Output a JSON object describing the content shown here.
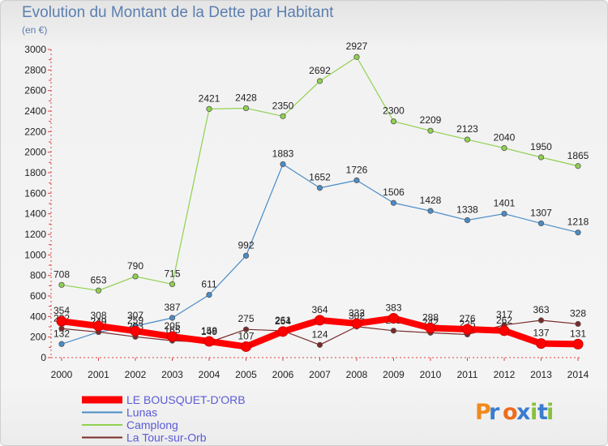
{
  "title": "Evolution du Montant de la Dette par Habitant",
  "unit_label": "(en €)",
  "logo_text": "Proxiti",
  "chart_data": {
    "type": "line",
    "title": "Evolution du Montant de la Dette par Habitant",
    "subtitle": "(en €)",
    "x": [
      "2000",
      "2001",
      "2002",
      "2003",
      "2004",
      "2005",
      "2006",
      "2007",
      "2008",
      "2009",
      "2010",
      "2011",
      "2012",
      "2013",
      "2014"
    ],
    "ylim": [
      0,
      3000
    ],
    "yticks": [
      0,
      200,
      400,
      600,
      800,
      1000,
      1200,
      1400,
      1600,
      1800,
      2000,
      2200,
      2400,
      2600,
      2800,
      3000
    ],
    "grid": false,
    "legend_position": "bottom-left",
    "series": [
      {
        "name": "Lunas",
        "color": "#4a8cc7",
        "values": [
          132,
          249,
          307,
          387,
          611,
          992,
          1883,
          1652,
          1726,
          1506,
          1428,
          1338,
          1401,
          1307,
          1218
        ]
      },
      {
        "name": "Camplong",
        "color": "#8fd14f",
        "values": [
          708,
          653,
          790,
          715,
          2421,
          2428,
          2350,
          2692,
          2927,
          2300,
          2209,
          2123,
          2040,
          1950,
          1865
        ]
      },
      {
        "name": "La Tour-sur-Orb",
        "color": "#7a2a2a",
        "values": [
          282,
          249,
          203,
          165,
          149,
          275,
          261,
          124,
          302,
          262,
          242,
          225,
          317,
          363,
          328
        ]
      },
      {
        "name": "LE BOUSQUET-D'ORB",
        "color": "#ff0000",
        "values": [
          354,
          308,
          259,
          205,
          158,
          107,
          254,
          364,
          332,
          383,
          288,
          276,
          262,
          137,
          131
        ]
      }
    ]
  }
}
